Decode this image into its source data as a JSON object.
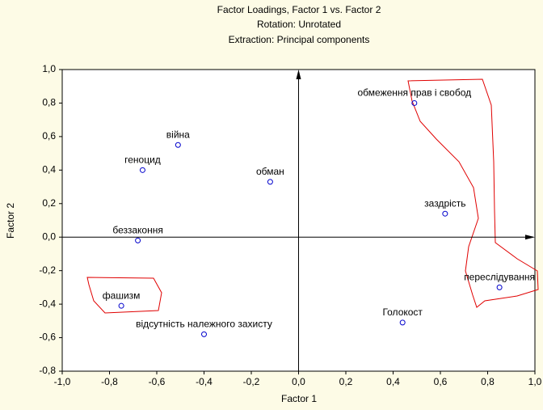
{
  "chart_data": {
    "type": "scatter",
    "title": "Factor Loadings, Factor 1 vs. Factor 2",
    "subtitle": [
      "Rotation: Unrotated",
      "Extraction: Principal components"
    ],
    "x_label": "Factor 1",
    "y_label": "Factor 2",
    "color": "#0000cc",
    "points": [
      {
        "label": "обмеження прав і свобод",
        "x": 0.49,
        "y": 0.8
      },
      {
        "label": "війна",
        "x": -0.51,
        "y": 0.55
      },
      {
        "label": "геноцид",
        "x": -0.66,
        "y": 0.4
      },
      {
        "label": "обман",
        "x": -0.12,
        "y": 0.33
      },
      {
        "label": "заздрість",
        "x": 0.62,
        "y": 0.14
      },
      {
        "label": "беззаконня",
        "x": -0.68,
        "y": -0.02
      },
      {
        "label": "переслідування",
        "x": 0.85,
        "y": -0.3
      },
      {
        "label": "фашизм",
        "x": -0.75,
        "y": -0.41
      },
      {
        "label": "Голокост",
        "x": 0.44,
        "y": -0.51
      },
      {
        "label": "відсутність належного захисту",
        "x": -0.4,
        "y": -0.58
      }
    ],
    "xlim": [
      -1.0,
      1.0
    ],
    "xticks": [
      {
        "value": -1.0,
        "label": "-1,0"
      },
      {
        "value": -0.8,
        "label": "-0,8"
      },
      {
        "value": -0.6,
        "label": "-0,6"
      },
      {
        "value": -0.4,
        "label": "-0,4"
      },
      {
        "value": -0.2,
        "label": "-0,2"
      },
      {
        "value": 0.0,
        "label": "0,0"
      },
      {
        "value": 0.2,
        "label": "0,2"
      },
      {
        "value": 0.4,
        "label": "0,4"
      },
      {
        "value": 0.6,
        "label": "0,6"
      },
      {
        "value": 0.8,
        "label": "0,8"
      },
      {
        "value": 1.0,
        "label": "1,0"
      }
    ],
    "ylim": [
      -0.8,
      1.0
    ],
    "yticks": [
      {
        "value": -0.8,
        "label": "-0,8"
      },
      {
        "value": -0.6,
        "label": "-0,6"
      },
      {
        "value": -0.4,
        "label": "-0,4"
      },
      {
        "value": -0.2,
        "label": "-0,2"
      },
      {
        "value": 0.0,
        "label": "0,0"
      },
      {
        "value": 0.2,
        "label": "0,2"
      },
      {
        "value": 0.4,
        "label": "0,4"
      },
      {
        "value": 0.6,
        "label": "0,6"
      },
      {
        "value": 0.8,
        "label": "0,8"
      },
      {
        "value": 1.0,
        "label": "1,0"
      }
    ]
  }
}
